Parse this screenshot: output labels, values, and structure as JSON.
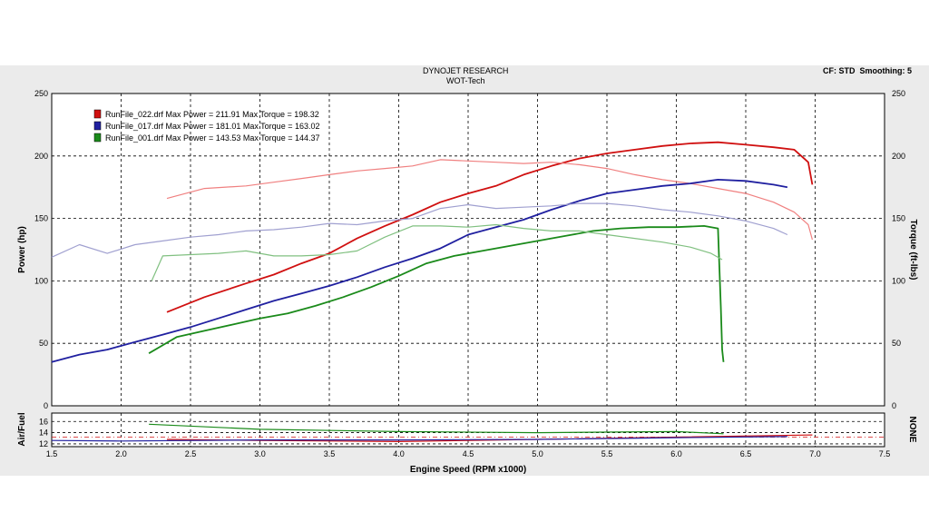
{
  "header": {
    "title": "DYNOJET RESEARCH",
    "subtitle": "WOT-Tech",
    "cf": "CF: STD",
    "smoothing": "Smoothing: 5"
  },
  "chart_data": {
    "type": "line",
    "xlabel": "Engine Speed (RPM x1000)",
    "ylabel_left": "Power (hp)",
    "ylabel_right": "Torque (ft-lbs)",
    "sub_ylabel_left": "Air/Fuel",
    "sub_ylabel_right": "NONE",
    "xlim": [
      1.5,
      7.5
    ],
    "ylim": [
      0,
      250
    ],
    "sub_ylim": [
      11.5,
      17.5
    ],
    "x_ticks": [
      "1.5",
      "2.0",
      "2.5",
      "3.0",
      "3.5",
      "4.0",
      "4.5",
      "5.0",
      "5.5",
      "6.0",
      "6.5",
      "7.0",
      "7.5"
    ],
    "y_ticks": [
      "0",
      "50",
      "100",
      "150",
      "200",
      "250"
    ],
    "sub_y_ticks": [
      "12",
      "14",
      "16"
    ],
    "grid": true,
    "legend_position": "top-left",
    "series": [
      {
        "name": "RunFile_022.drf Max Power = 211.91 Max Torque = 198.32",
        "color": "#d01010",
        "kind": "power",
        "x": [
          2.33,
          2.6,
          2.9,
          3.1,
          3.3,
          3.5,
          3.7,
          3.9,
          4.1,
          4.3,
          4.5,
          4.7,
          4.9,
          5.1,
          5.3,
          5.5,
          5.7,
          5.9,
          6.1,
          6.3,
          6.5,
          6.7,
          6.85,
          6.95,
          6.98
        ],
        "y": [
          75,
          87,
          98,
          105,
          114,
          122,
          134,
          144,
          153,
          163,
          170,
          176,
          185,
          192,
          198,
          202,
          205,
          208,
          210,
          211,
          209,
          207,
          205,
          195,
          177
        ]
      },
      {
        "name": "RunFile_022.drf Max Power = 211.91 Max Torque = 198.32",
        "color": "#f08080",
        "kind": "torque",
        "x": [
          2.33,
          2.6,
          2.9,
          3.1,
          3.3,
          3.5,
          3.7,
          3.9,
          4.1,
          4.3,
          4.5,
          4.7,
          4.9,
          5.1,
          5.3,
          5.5,
          5.7,
          5.9,
          6.1,
          6.3,
          6.5,
          6.7,
          6.85,
          6.95,
          6.98
        ],
        "y": [
          166,
          174,
          176,
          179,
          182,
          185,
          188,
          190,
          192,
          197,
          196,
          195,
          194,
          195,
          193,
          190,
          185,
          181,
          178,
          174,
          170,
          163,
          155,
          145,
          133
        ]
      },
      {
        "name": "RunFile_017.drf Max Power = 181.01 Max Torque = 163.02",
        "color": "#2020a0",
        "kind": "power",
        "x": [
          1.5,
          1.7,
          1.9,
          2.1,
          2.3,
          2.5,
          2.7,
          2.9,
          3.1,
          3.3,
          3.5,
          3.7,
          3.9,
          4.1,
          4.3,
          4.5,
          4.7,
          4.9,
          5.1,
          5.3,
          5.5,
          5.7,
          5.9,
          6.1,
          6.3,
          6.5,
          6.7,
          6.8
        ],
        "y": [
          35,
          41,
          45,
          51,
          57,
          63,
          70,
          77,
          84,
          90,
          96,
          103,
          111,
          118,
          126,
          137,
          143,
          149,
          157,
          164,
          170,
          173,
          176,
          178,
          181,
          180,
          177,
          175
        ]
      },
      {
        "name": "RunFile_017.drf Max Power = 181.01 Max Torque = 163.02",
        "color": "#a0a0d0",
        "kind": "torque",
        "x": [
          1.5,
          1.7,
          1.9,
          2.1,
          2.3,
          2.5,
          2.7,
          2.9,
          3.1,
          3.3,
          3.5,
          3.7,
          3.9,
          4.1,
          4.3,
          4.5,
          4.7,
          4.9,
          5.1,
          5.3,
          5.5,
          5.7,
          5.9,
          6.1,
          6.3,
          6.5,
          6.7,
          6.8
        ],
        "y": [
          119,
          129,
          122,
          129,
          132,
          135,
          137,
          140,
          141,
          143,
          146,
          145,
          148,
          150,
          158,
          161,
          158,
          159,
          160,
          162,
          162,
          160,
          157,
          155,
          152,
          148,
          142,
          137
        ]
      },
      {
        "name": "RunFile_001.drf Max Power = 143.53 Max Torque = 144.37",
        "color": "#1a8a1a",
        "kind": "power",
        "x": [
          2.2,
          2.4,
          2.6,
          2.8,
          3.0,
          3.2,
          3.4,
          3.6,
          3.8,
          4.0,
          4.2,
          4.4,
          4.6,
          4.8,
          5.0,
          5.2,
          5.4,
          5.6,
          5.8,
          6.0,
          6.2,
          6.3,
          6.32,
          6.33,
          6.34
        ],
        "y": [
          42,
          55,
          60,
          65,
          70,
          74,
          80,
          87,
          95,
          104,
          114,
          120,
          124,
          128,
          132,
          136,
          140,
          142,
          143,
          143,
          144,
          142,
          80,
          45,
          35
        ]
      },
      {
        "name": "RunFile_001.drf Max Power = 143.53 Max Torque = 144.37",
        "color": "#80c080",
        "kind": "torque",
        "x": [
          2.22,
          2.3,
          2.5,
          2.7,
          2.9,
          3.1,
          3.3,
          3.5,
          3.7,
          3.9,
          4.1,
          4.3,
          4.5,
          4.7,
          4.9,
          5.1,
          5.3,
          5.5,
          5.7,
          5.9,
          6.1,
          6.25,
          6.33
        ],
        "y": [
          100,
          120,
          121,
          122,
          124,
          120,
          120,
          121,
          124,
          135,
          144,
          144,
          143,
          145,
          142,
          140,
          140,
          137,
          134,
          131,
          127,
          122,
          117
        ]
      }
    ],
    "afr_series": [
      {
        "color": "#d01010",
        "x": [
          2.33,
          3.0,
          4.0,
          5.0,
          6.0,
          6.98
        ],
        "y": [
          12.8,
          12.6,
          12.4,
          12.8,
          13.2,
          13.6
        ]
      },
      {
        "color": "#2020a0",
        "x": [
          1.5,
          2.0,
          3.0,
          4.0,
          5.0,
          6.0,
          6.8
        ],
        "y": [
          12.6,
          12.5,
          12.7,
          12.7,
          12.8,
          13.1,
          13.3
        ]
      },
      {
        "color": "#1a8a1a",
        "x": [
          2.2,
          3.0,
          4.0,
          5.0,
          6.0,
          6.34
        ],
        "y": [
          15.5,
          14.6,
          14.2,
          14.0,
          14.2,
          13.8
        ]
      }
    ]
  }
}
